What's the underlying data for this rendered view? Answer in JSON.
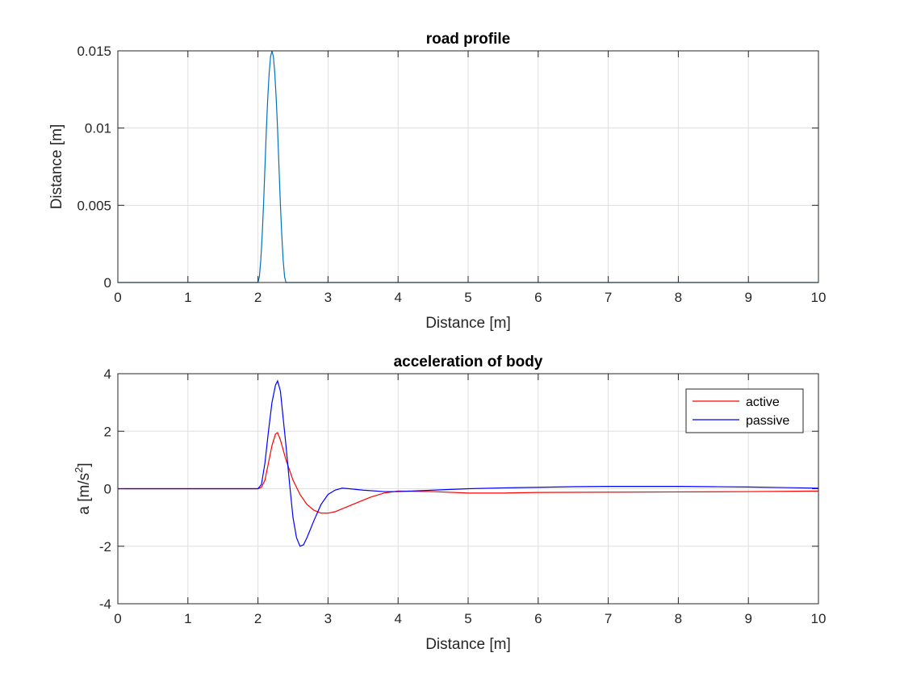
{
  "chart_data": [
    {
      "type": "line",
      "title": "road profile",
      "xlabel": "Distance [m]",
      "ylabel": "Distance [m]",
      "xlim": [
        0,
        10
      ],
      "ylim": [
        0,
        0.015
      ],
      "xticks": [
        "0",
        "1",
        "2",
        "3",
        "4",
        "5",
        "6",
        "7",
        "8",
        "9",
        "10"
      ],
      "yticks": [
        "0",
        "0.005",
        "0.01",
        "0.015"
      ],
      "grid": true,
      "series": [
        {
          "color": "#0072BD",
          "x": [
            0,
            2.0,
            2.02,
            2.04,
            2.06,
            2.08,
            2.1,
            2.12,
            2.14,
            2.16,
            2.18,
            2.2,
            2.22,
            2.24,
            2.26,
            2.28,
            2.3,
            2.32,
            2.34,
            2.36,
            2.38,
            2.4,
            10
          ],
          "y": [
            0,
            0,
            0.000369,
            0.001432,
            0.003055,
            0.005073,
            0.0075,
            0.009927,
            0.011945,
            0.013568,
            0.014631,
            0.015,
            0.014631,
            0.013568,
            0.011945,
            0.009927,
            0.0075,
            0.005073,
            0.003055,
            0.001432,
            0.000369,
            0,
            0
          ]
        }
      ]
    },
    {
      "type": "line",
      "title": "acceleration of body",
      "xlabel": "Distance [m]",
      "ylabel": "a [m/s",
      "ylabel_sup": "2",
      "ylabel_suffix": "]",
      "xlim": [
        0,
        10
      ],
      "ylim": [
        -4,
        4
      ],
      "xticks": [
        "0",
        "1",
        "2",
        "3",
        "4",
        "5",
        "6",
        "7",
        "8",
        "9",
        "10"
      ],
      "yticks": [
        "-4",
        "-2",
        "0",
        "2",
        "4"
      ],
      "grid": true,
      "legend": "top-right",
      "series": [
        {
          "name": "active",
          "color": "#FF0000",
          "x": [
            0,
            2.0,
            2.05,
            2.1,
            2.15,
            2.2,
            2.25,
            2.28,
            2.32,
            2.4,
            2.5,
            2.6,
            2.7,
            2.8,
            2.9,
            3.0,
            3.1,
            3.2,
            3.4,
            3.6,
            3.8,
            4.0,
            4.5,
            5.0,
            5.5,
            6.0,
            7.0,
            8.0,
            9.0,
            10.0
          ],
          "y": [
            0,
            0,
            0.05,
            0.3,
            0.9,
            1.5,
            1.9,
            1.95,
            1.7,
            1.0,
            0.3,
            -0.2,
            -0.55,
            -0.75,
            -0.85,
            -0.85,
            -0.8,
            -0.7,
            -0.5,
            -0.3,
            -0.15,
            -0.08,
            -0.1,
            -0.15,
            -0.15,
            -0.13,
            -0.12,
            -0.11,
            -0.1,
            -0.08
          ]
        },
        {
          "name": "passive",
          "color": "#0000FF",
          "x": [
            0,
            2.0,
            2.05,
            2.1,
            2.15,
            2.2,
            2.25,
            2.28,
            2.32,
            2.4,
            2.45,
            2.5,
            2.55,
            2.6,
            2.65,
            2.7,
            2.8,
            2.9,
            3.0,
            3.1,
            3.2,
            3.3,
            3.5,
            3.8,
            4.0,
            4.5,
            5.0,
            5.5,
            6.0,
            6.5,
            7.0,
            7.5,
            8.0,
            8.5,
            9.0,
            9.5,
            10.0
          ],
          "y": [
            0,
            0,
            0.15,
            0.9,
            2.0,
            3.0,
            3.6,
            3.75,
            3.4,
            1.5,
            0.2,
            -1.0,
            -1.7,
            -2.0,
            -1.95,
            -1.7,
            -1.1,
            -0.55,
            -0.2,
            -0.05,
            0.02,
            0.0,
            -0.05,
            -0.1,
            -0.1,
            -0.05,
            0.0,
            0.03,
            0.05,
            0.07,
            0.08,
            0.08,
            0.08,
            0.07,
            0.06,
            0.04,
            0.02
          ]
        }
      ]
    }
  ]
}
